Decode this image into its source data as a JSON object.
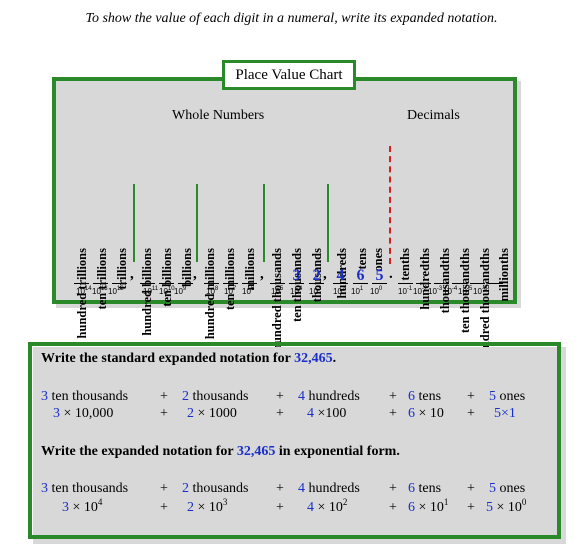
{
  "intro": "To show the value of each digit in a numeral, write its expanded notation.",
  "chart": {
    "title": "Place Value Chart",
    "groups": {
      "whole": "Whole Numbers",
      "decimals": "Decimals"
    },
    "places": [
      "hundred trillions",
      "ten trillions",
      "trillions",
      "hundred billions",
      "ten billions",
      "billions",
      "hundred millions",
      "ten millions",
      "millions",
      "hundred thousands",
      "ten thousands",
      "thousands",
      "hundreds",
      "tens",
      "ones",
      "tenths",
      "hundredths",
      "thousandths",
      "ten thousandths",
      "hundred thousandths",
      "millionths"
    ],
    "digits": {
      "ten_thousands": "3",
      "thousands": "2",
      "hundreds": "4",
      "tens": "6",
      "ones": "5"
    },
    "powers": [
      {
        "base": "10",
        "exp": "14"
      },
      {
        "base": "10",
        "exp": "13"
      },
      {
        "base": "10",
        "exp": "12"
      },
      {
        "base": "10",
        "exp": "11"
      },
      {
        "base": "10",
        "exp": "10"
      },
      {
        "base": "10",
        "exp": "9"
      },
      {
        "base": "10",
        "exp": "8"
      },
      {
        "base": "10",
        "exp": "7"
      },
      {
        "base": "10",
        "exp": "6"
      },
      {
        "base": "10",
        "exp": "5"
      },
      {
        "base": "10",
        "exp": "4"
      },
      {
        "base": "10",
        "exp": "3"
      },
      {
        "base": "10",
        "exp": "2"
      },
      {
        "base": "10",
        "exp": "1"
      },
      {
        "base": "10",
        "exp": "0"
      },
      {
        "base": "10",
        "exp": "-1"
      },
      {
        "base": "10",
        "exp": "-2"
      },
      {
        "base": "10",
        "exp": "-3"
      },
      {
        "base": "10",
        "exp": "-4"
      },
      {
        "base": "10",
        "exp": "-5"
      },
      {
        "base": "10",
        "exp": "-6"
      }
    ]
  },
  "standard": {
    "heading": "Write the standard expanded notation for ",
    "number": "32,465",
    "heading_end": ".",
    "words": [
      {
        "digit": "3",
        "unit": "ten thousands"
      },
      {
        "digit": "2",
        "unit": "thousands"
      },
      {
        "digit": "4",
        "unit": "hundreds"
      },
      {
        "digit": "6",
        "unit": "tens"
      },
      {
        "digit": "5",
        "unit": "ones"
      }
    ],
    "products": [
      "3 × 10,000",
      "2 × 1000",
      "4 ×100",
      "6 × 10",
      "5×1"
    ]
  },
  "exponential": {
    "heading": "Write the expanded notation for ",
    "number": "32,465",
    "heading_end": " in exponential form.",
    "words": [
      {
        "digit": "3",
        "unit": "ten thousands"
      },
      {
        "digit": "2",
        "unit": "thousands"
      },
      {
        "digit": "4",
        "unit": "hundreds"
      },
      {
        "digit": "6",
        "unit": "tens"
      },
      {
        "digit": "5",
        "unit": "ones"
      }
    ],
    "products": [
      {
        "digit": "3",
        "base": "10",
        "exp": "4"
      },
      {
        "digit": "2",
        "base": "10",
        "exp": "3"
      },
      {
        "digit": "4",
        "base": "10",
        "exp": "2"
      },
      {
        "digit": "6",
        "base": "10",
        "exp": "1"
      },
      {
        "digit": "5",
        "base": "10",
        "exp": "0"
      }
    ]
  },
  "plus": "+",
  "times": "×",
  "colors": {
    "green": "#2a8a2a",
    "blue": "#1a2fc8",
    "red": "#d62020"
  }
}
